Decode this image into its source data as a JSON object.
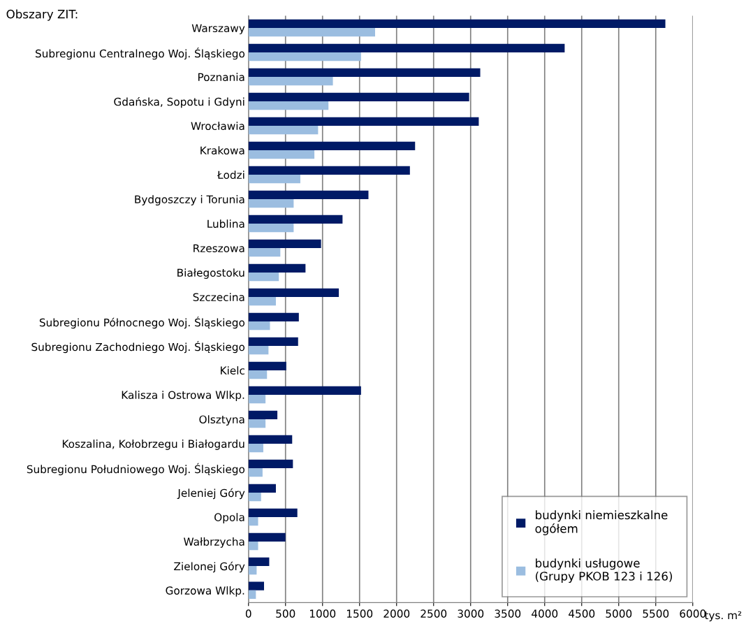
{
  "chart_data": {
    "type": "bar",
    "orientation": "horizontal",
    "title": "Obszary ZIT:",
    "xlabel": "tys. m²",
    "categories": [
      "Warszawy",
      "Subregionu Centralnego Woj. Śląskiego",
      "Poznania",
      "Gdańska, Sopotu i Gdyni",
      "Wrocławia",
      "Krakowa",
      "Łodzi",
      "Bydgoszczy i Torunia",
      "Lublina",
      "Rzeszowa",
      "Białegostoku",
      "Szczecina",
      "Subregionu Północnego Woj. Śląskiego",
      "Subregionu Zachodniego Woj. Śląskiego",
      "Kielc",
      "Kalisza i Ostrowa Wlkp.",
      "Olsztyna",
      "Koszalina, Kołobrzegu i Białogardu",
      "Subregionu Południowego Woj. Śląskiego",
      "Jeleniej Góry",
      "Opola",
      "Wałbrzycha",
      "Zielonej Góry",
      "Gorzowa Wlkp."
    ],
    "series": [
      {
        "name": "budynki niemieszkalne\nogółem",
        "color": "#001a66",
        "values": [
          5630,
          4270,
          3130,
          2980,
          3110,
          2250,
          2180,
          1620,
          1270,
          980,
          770,
          1220,
          680,
          670,
          510,
          1520,
          390,
          590,
          600,
          370,
          660,
          500,
          280,
          210
        ]
      },
      {
        "name": "budynki usługowe\n(Grupy PKOB 123 i 126)",
        "color": "#9bbde0",
        "values": [
          1710,
          1520,
          1140,
          1080,
          940,
          890,
          700,
          610,
          610,
          430,
          410,
          370,
          290,
          270,
          250,
          230,
          230,
          200,
          190,
          170,
          130,
          130,
          110,
          100
        ]
      }
    ],
    "xlim": [
      0,
      6000
    ],
    "xticks": [
      0,
      500,
      1000,
      1500,
      2000,
      2500,
      3000,
      3500,
      4000,
      4500,
      5000,
      5500,
      6000
    ],
    "grid": "x",
    "legend": "bottom right"
  }
}
